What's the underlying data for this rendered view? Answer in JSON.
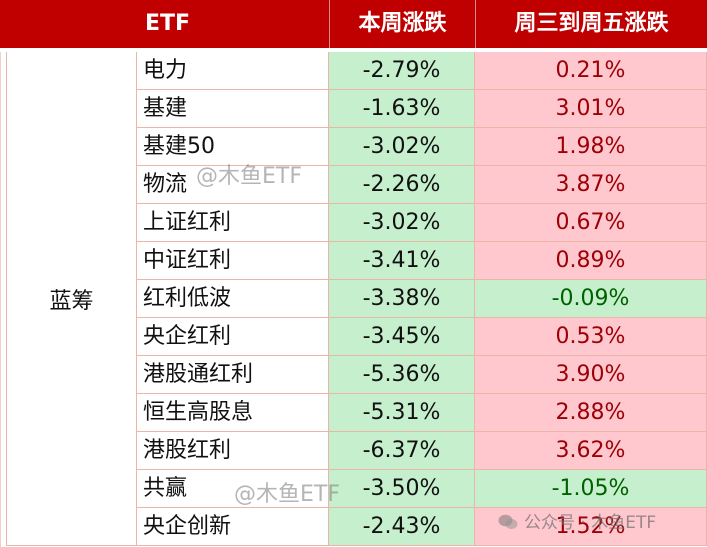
{
  "header": {
    "etf_label": "ETF",
    "week_change_label": "本周涨跌",
    "wed_fri_change_label": "周三到周五涨跌"
  },
  "group": {
    "label": "蓝筹"
  },
  "rows": [
    {
      "name": "电力",
      "week": "-2.79%",
      "wed_fri": "0.21%",
      "wed_fri_sign": "pos"
    },
    {
      "name": "基建",
      "week": "-1.63%",
      "wed_fri": "3.01%",
      "wed_fri_sign": "pos"
    },
    {
      "name": "基建50",
      "week": "-3.02%",
      "wed_fri": "1.98%",
      "wed_fri_sign": "pos"
    },
    {
      "name": "物流",
      "week": "-2.26%",
      "wed_fri": "3.87%",
      "wed_fri_sign": "pos"
    },
    {
      "name": "上证红利",
      "week": "-3.02%",
      "wed_fri": "0.67%",
      "wed_fri_sign": "pos"
    },
    {
      "name": "中证红利",
      "week": "-3.41%",
      "wed_fri": "0.89%",
      "wed_fri_sign": "pos"
    },
    {
      "name": "红利低波",
      "week": "-3.38%",
      "wed_fri": "-0.09%",
      "wed_fri_sign": "neg"
    },
    {
      "name": "央企红利",
      "week": "-3.45%",
      "wed_fri": "0.53%",
      "wed_fri_sign": "pos"
    },
    {
      "name": "港股通红利",
      "week": "-5.36%",
      "wed_fri": "3.90%",
      "wed_fri_sign": "pos"
    },
    {
      "name": "恒生高股息",
      "week": "-5.31%",
      "wed_fri": "2.88%",
      "wed_fri_sign": "pos"
    },
    {
      "name": "港股红利",
      "week": "-6.37%",
      "wed_fri": "3.62%",
      "wed_fri_sign": "pos"
    },
    {
      "name": "共赢",
      "week": "-3.50%",
      "wed_fri": "-1.05%",
      "wed_fri_sign": "neg"
    },
    {
      "name": "央企创新",
      "week": "-2.43%",
      "wed_fri": "1.52%",
      "wed_fri_sign": "pos"
    }
  ],
  "watermarks": {
    "wm1": "@木鱼ETF",
    "wm2": "@木鱼ETF",
    "wm3": "公众号 · 木鱼ETF"
  },
  "colors": {
    "header_bg": "#c00000",
    "positive_bg": "#ffc7ce",
    "negative_bg": "#c6efce"
  }
}
